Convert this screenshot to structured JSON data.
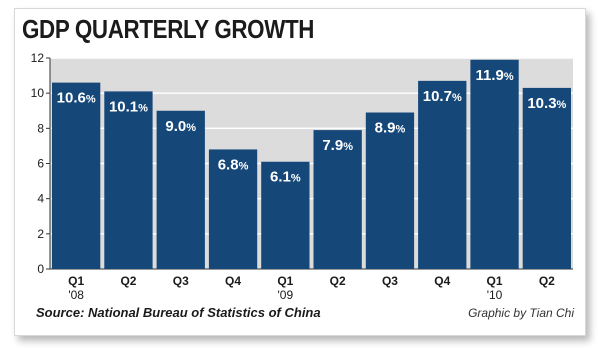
{
  "header": {
    "title": "GDP QUARTERLY GROWTH"
  },
  "footer": {
    "source": "Source: National Bureau of Statistics of China",
    "credit": "Graphic by Tian Chi"
  },
  "colors": {
    "bar": "#154779",
    "panel": "#dcdcdc",
    "text": "#1b1b1b"
  },
  "chart_data": {
    "type": "bar",
    "title": "GDP QUARTERLY GROWTH",
    "categories": [
      "Q1",
      "Q2",
      "Q3",
      "Q4",
      "Q1",
      "Q2",
      "Q3",
      "Q4",
      "Q1",
      "Q2"
    ],
    "year_labels": [
      "'08",
      "",
      "",
      "",
      "'09",
      "",
      "",
      "",
      "'10",
      ""
    ],
    "values": [
      10.6,
      10.1,
      9.0,
      6.8,
      6.1,
      7.9,
      8.9,
      10.7,
      11.9,
      10.3
    ],
    "data_labels": [
      "10.6%",
      "10.1%",
      "9.0%",
      "6.8%",
      "6.1%",
      "7.9%",
      "8.9%",
      "10.7%",
      "11.9%",
      "10.3%"
    ],
    "ylim": [
      0,
      12
    ],
    "yticks": [
      0,
      2,
      4,
      6,
      8,
      10,
      12
    ],
    "grid": true,
    "xlabel": "",
    "ylabel": ""
  }
}
